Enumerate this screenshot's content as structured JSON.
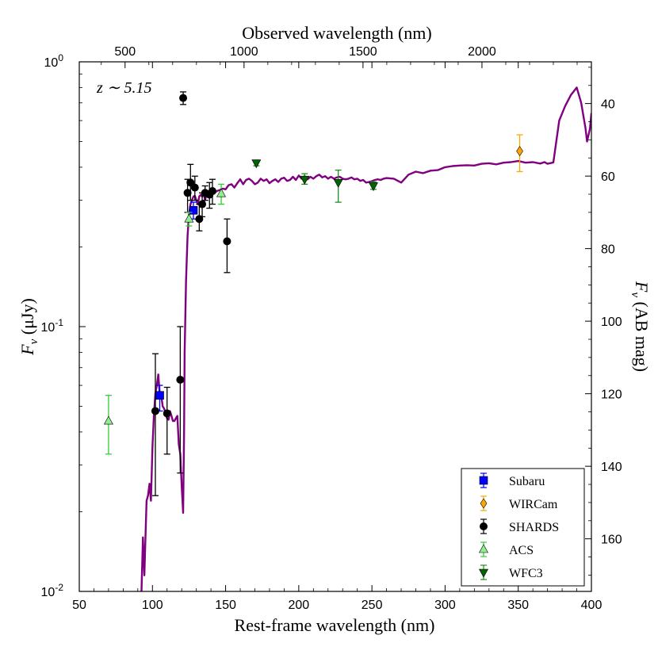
{
  "chart_data": {
    "type": "scatter",
    "annotation": "z ∼ 5.15",
    "x_axis": {
      "label": "Rest-frame wavelength (nm)",
      "range": [
        50,
        400
      ],
      "ticks": [
        50,
        100,
        150,
        200,
        250,
        300,
        350,
        400
      ],
      "tick_labels": [
        "50",
        "100",
        "150",
        "200",
        "250",
        "300",
        "350",
        "400"
      ]
    },
    "top_axis": {
      "label": "Observed wavelength (nm)",
      "redshift": 5.15,
      "ticks": [
        500,
        1000,
        1500,
        2000
      ],
      "tick_labels": [
        "500",
        "1000",
        "1500",
        "2000"
      ]
    },
    "y_axis": {
      "label": "F_ν (μJy)",
      "label_main": "F",
      "label_sub": "ν",
      "label_rest": " (μJy)",
      "scale": "log",
      "range": [
        0.01,
        1.0
      ],
      "ticks": [
        0.01,
        0.1,
        1.0
      ],
      "tick_labels": [
        {
          "base": "10",
          "exp": "-2"
        },
        {
          "base": "10",
          "exp": "-1"
        },
        {
          "base": "10",
          "exp": "0"
        }
      ]
    },
    "right_axis": {
      "label": "F_ν (AB mag)",
      "label_main": "F",
      "label_sub": "ν",
      "label_rest": " (AB mag)",
      "ticks": [
        40,
        60,
        80,
        100,
        120,
        140,
        160
      ],
      "tick_labels": [
        "40",
        "60",
        "80",
        "100",
        "120",
        "140",
        "160"
      ],
      "top_value": 28.5,
      "bottom_value": 174.5
    },
    "model": {
      "name": "SED model",
      "color": "#800080",
      "points": [
        [
          92.5,
          0.0098
        ],
        [
          93.5,
          0.016
        ],
        [
          94.5,
          0.0115
        ],
        [
          95.5,
          0.018
        ],
        [
          96,
          0.022
        ],
        [
          97,
          0.023
        ],
        [
          98,
          0.0255
        ],
        [
          99,
          0.022
        ],
        [
          100,
          0.035
        ],
        [
          101,
          0.046
        ],
        [
          102,
          0.056
        ],
        [
          103,
          0.06
        ],
        [
          104,
          0.066
        ],
        [
          105,
          0.055
        ],
        [
          106,
          0.055
        ],
        [
          107,
          0.05
        ],
        [
          108,
          0.049
        ],
        [
          109,
          0.047
        ],
        [
          110,
          0.045
        ],
        [
          111,
          0.0445
        ],
        [
          112,
          0.048
        ],
        [
          113,
          0.046
        ],
        [
          114,
          0.044
        ],
        [
          115,
          0.044
        ],
        [
          116,
          0.045
        ],
        [
          117,
          0.046
        ],
        [
          118,
          0.036
        ],
        [
          119,
          0.033
        ],
        [
          120,
          0.025
        ],
        [
          121,
          0.0198
        ],
        [
          121.6,
          0.04
        ],
        [
          122,
          0.08
        ],
        [
          123,
          0.15
        ],
        [
          124,
          0.22
        ],
        [
          125,
          0.265
        ],
        [
          126,
          0.29
        ],
        [
          127,
          0.3
        ],
        [
          128,
          0.31
        ],
        [
          129,
          0.312
        ],
        [
          130,
          0.3
        ],
        [
          131,
          0.29
        ],
        [
          132,
          0.31
        ],
        [
          133,
          0.315
        ],
        [
          134,
          0.31
        ],
        [
          135,
          0.318
        ],
        [
          136,
          0.3
        ],
        [
          137,
          0.32
        ],
        [
          138,
          0.325
        ],
        [
          140,
          0.32
        ],
        [
          142,
          0.318
        ],
        [
          144,
          0.325
        ],
        [
          146,
          0.328
        ],
        [
          148,
          0.332
        ],
        [
          150,
          0.33
        ],
        [
          152,
          0.342
        ],
        [
          154,
          0.345
        ],
        [
          156,
          0.335
        ],
        [
          158,
          0.348
        ],
        [
          160,
          0.36
        ],
        [
          162,
          0.345
        ],
        [
          164,
          0.358
        ],
        [
          166,
          0.362
        ],
        [
          168,
          0.355
        ],
        [
          170,
          0.345
        ],
        [
          172,
          0.35
        ],
        [
          174,
          0.362
        ],
        [
          176,
          0.355
        ],
        [
          178,
          0.36
        ],
        [
          180,
          0.348
        ],
        [
          182,
          0.355
        ],
        [
          184,
          0.36
        ],
        [
          186,
          0.352
        ],
        [
          188,
          0.362
        ],
        [
          190,
          0.365
        ],
        [
          192,
          0.355
        ],
        [
          194,
          0.358
        ],
        [
          196,
          0.368
        ],
        [
          198,
          0.358
        ],
        [
          200,
          0.372
        ],
        [
          202,
          0.362
        ],
        [
          204,
          0.37
        ],
        [
          206,
          0.36
        ],
        [
          208,
          0.368
        ],
        [
          210,
          0.362
        ],
        [
          212,
          0.37
        ],
        [
          214,
          0.375
        ],
        [
          216,
          0.366
        ],
        [
          218,
          0.37
        ],
        [
          220,
          0.362
        ],
        [
          222,
          0.368
        ],
        [
          224,
          0.362
        ],
        [
          226,
          0.366
        ],
        [
          228,
          0.368
        ],
        [
          230,
          0.362
        ],
        [
          232,
          0.36
        ],
        [
          234,
          0.362
        ],
        [
          236,
          0.366
        ],
        [
          238,
          0.36
        ],
        [
          240,
          0.362
        ],
        [
          242,
          0.355
        ],
        [
          244,
          0.358
        ],
        [
          246,
          0.35
        ],
        [
          248,
          0.352
        ],
        [
          250,
          0.354
        ],
        [
          252,
          0.358
        ],
        [
          254,
          0.36
        ],
        [
          256,
          0.358
        ],
        [
          258,
          0.362
        ],
        [
          260,
          0.364
        ],
        [
          265,
          0.362
        ],
        [
          270,
          0.35
        ],
        [
          275,
          0.375
        ],
        [
          280,
          0.385
        ],
        [
          285,
          0.38
        ],
        [
          290,
          0.388
        ],
        [
          295,
          0.39
        ],
        [
          300,
          0.4
        ],
        [
          305,
          0.404
        ],
        [
          310,
          0.406
        ],
        [
          315,
          0.407
        ],
        [
          320,
          0.406
        ],
        [
          325,
          0.412
        ],
        [
          330,
          0.414
        ],
        [
          335,
          0.41
        ],
        [
          340,
          0.416
        ],
        [
          345,
          0.418
        ],
        [
          350,
          0.422
        ],
        [
          355,
          0.416
        ],
        [
          360,
          0.418
        ],
        [
          365,
          0.413
        ],
        [
          368,
          0.418
        ],
        [
          370,
          0.412
        ],
        [
          374,
          0.417
        ],
        [
          378,
          0.6
        ],
        [
          382,
          0.68
        ],
        [
          386,
          0.75
        ],
        [
          390,
          0.8
        ],
        [
          393,
          0.7
        ],
        [
          396,
          0.56
        ],
        [
          397,
          0.5
        ],
        [
          399,
          0.56
        ],
        [
          400,
          0.64
        ]
      ]
    },
    "series": [
      {
        "name": "Subaru",
        "marker": "square",
        "color": "#0000ff",
        "err_color": "#0000ff",
        "points": [
          {
            "x": 105,
            "y": 0.055,
            "lo": 0.048,
            "hi": 0.06
          },
          {
            "x": 128,
            "y": 0.275,
            "lo": 0.255,
            "hi": 0.295
          }
        ]
      },
      {
        "name": "WIRCam",
        "marker": "diamond",
        "color": "#ffa500",
        "err_color": "#ffa500",
        "points": [
          {
            "x": 351,
            "y": 0.46,
            "lo": 0.385,
            "hi": 0.53
          }
        ]
      },
      {
        "name": "SHARDS",
        "marker": "circle",
        "color": "#000000",
        "err_color": "#000000",
        "points": [
          {
            "x": 102,
            "y": 0.048,
            "lo": 0.023,
            "hi": 0.079
          },
          {
            "x": 110,
            "y": 0.047,
            "lo": 0.033,
            "hi": 0.059
          },
          {
            "x": 119,
            "y": 0.063,
            "lo": 0.028,
            "hi": 0.1
          },
          {
            "x": 121,
            "y": 0.73,
            "lo": 0.69,
            "hi": 0.77
          },
          {
            "x": 124,
            "y": 0.32,
            "lo": 0.27,
            "hi": 0.36
          },
          {
            "x": 126,
            "y": 0.35,
            "lo": 0.3,
            "hi": 0.41
          },
          {
            "x": 129,
            "y": 0.335,
            "lo": 0.3,
            "hi": 0.37
          },
          {
            "x": 132,
            "y": 0.255,
            "lo": 0.23,
            "hi": 0.29
          },
          {
            "x": 134,
            "y": 0.29,
            "lo": 0.26,
            "hi": 0.32
          },
          {
            "x": 136,
            "y": 0.32,
            "lo": 0.3,
            "hi": 0.34
          },
          {
            "x": 139,
            "y": 0.315,
            "lo": 0.28,
            "hi": 0.35
          },
          {
            "x": 141,
            "y": 0.325,
            "lo": 0.29,
            "hi": 0.36
          },
          {
            "x": 151,
            "y": 0.21,
            "lo": 0.16,
            "hi": 0.255
          }
        ]
      },
      {
        "name": "ACS",
        "marker": "triangle-up",
        "color": "#90ee90",
        "err_color": "#32cd32",
        "points": [
          {
            "x": 70,
            "y": 0.044,
            "lo": 0.033,
            "hi": 0.055
          },
          {
            "x": 125,
            "y": 0.255,
            "lo": 0.24,
            "hi": 0.27
          },
          {
            "x": 147,
            "y": 0.318,
            "lo": 0.29,
            "hi": 0.345
          }
        ]
      },
      {
        "name": "WFC3",
        "marker": "triangle-down",
        "color": "#006400",
        "err_color": "#228b22",
        "points": [
          {
            "x": 171,
            "y": 0.415,
            "lo": 0.405,
            "hi": 0.425
          },
          {
            "x": 204,
            "y": 0.36,
            "lo": 0.345,
            "hi": 0.378
          },
          {
            "x": 227,
            "y": 0.35,
            "lo": 0.295,
            "hi": 0.39
          },
          {
            "x": 251,
            "y": 0.34,
            "lo": 0.33,
            "hi": 0.352
          }
        ]
      }
    ],
    "legend": {
      "placement": "bottom-right",
      "entries": [
        "Subaru",
        "WIRCam",
        "SHARDS",
        "ACS",
        "WFC3"
      ]
    }
  }
}
